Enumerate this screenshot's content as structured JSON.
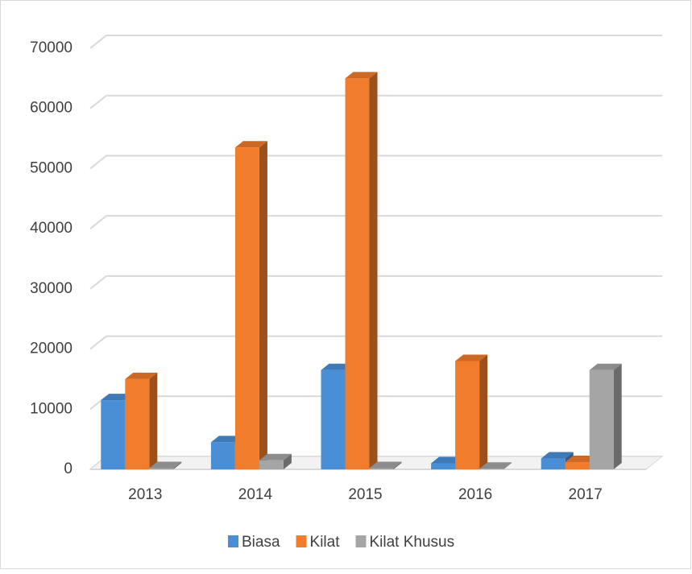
{
  "chart_data": {
    "type": "bar",
    "categories": [
      "2013",
      "2014",
      "2015",
      "2016",
      "2017"
    ],
    "series": [
      {
        "name": "Biasa",
        "color": "#4a8fd6",
        "values": [
          11500,
          4500,
          16500,
          1000,
          1800
        ]
      },
      {
        "name": "Kilat",
        "color": "#f07c2c",
        "values": [
          15000,
          53500,
          65000,
          18000,
          1200
        ]
      },
      {
        "name": "Kilat Khusus",
        "color": "#a5a5a5",
        "values": [
          200,
          1500,
          200,
          100,
          16500
        ]
      }
    ],
    "ylim": [
      0,
      70000
    ],
    "yticks": [
      0,
      10000,
      20000,
      30000,
      40000,
      50000,
      60000,
      70000
    ],
    "grid": true,
    "legend": "bottom"
  }
}
